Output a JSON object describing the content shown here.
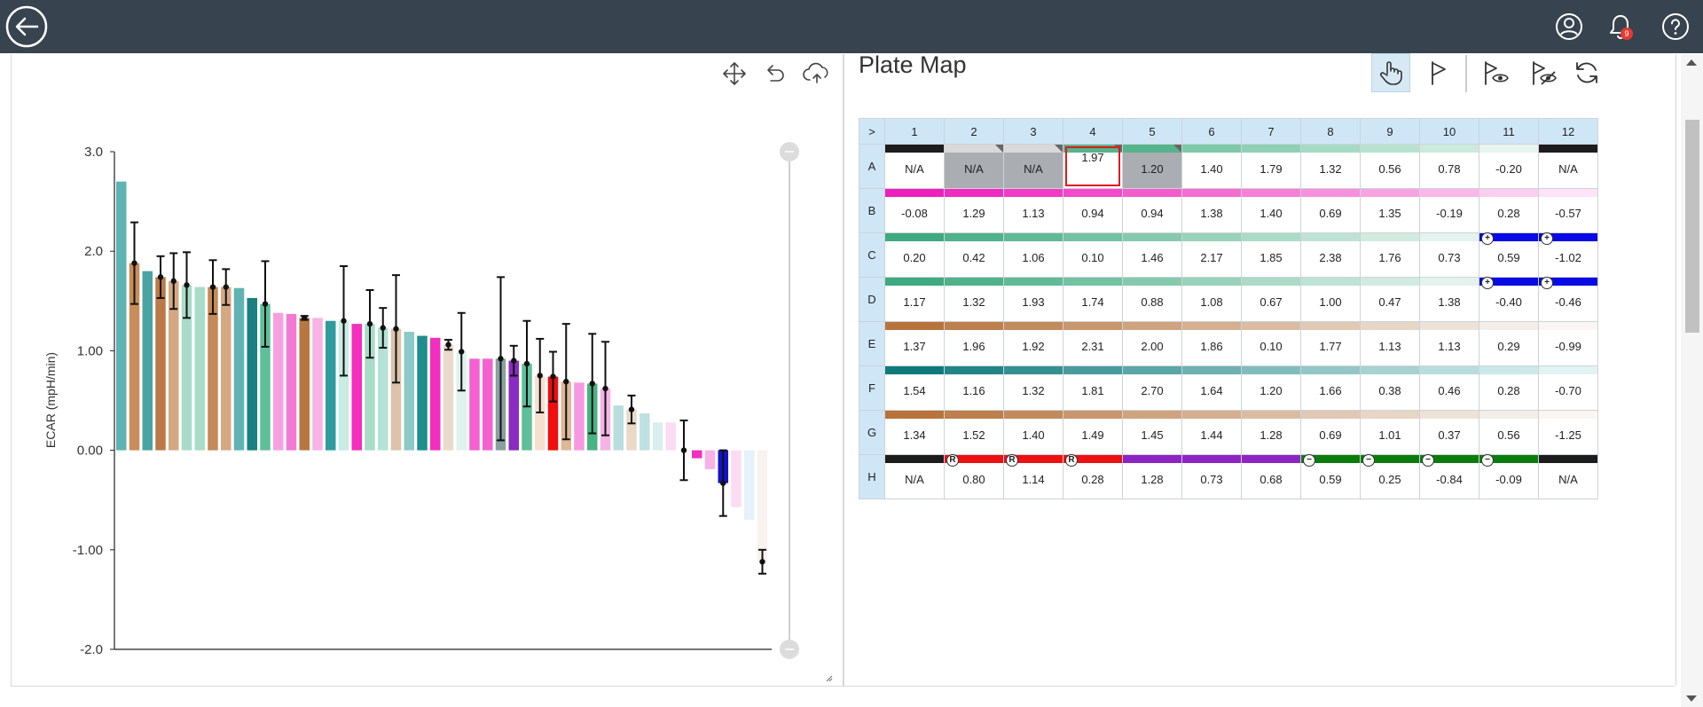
{
  "header": {
    "back_icon": "back-arrow-icon",
    "account_icon": "account-icon",
    "notifications_icon": "bell-icon",
    "notification_count": "9",
    "help_icon": "help-icon"
  },
  "chart_toolbar": [
    "move-icon",
    "undo-icon",
    "cloud-upload-icon"
  ],
  "chart_data": {
    "type": "bar",
    "ylabel": "ECAR (mpH/min)",
    "ylim": [
      -2.0,
      3.0
    ],
    "yticks": [
      "3.0",
      "2.0",
      "1.00",
      "0.00",
      "-1.00",
      "-2.0"
    ],
    "ytick_values": [
      3,
      2,
      1,
      0,
      -1,
      -2
    ],
    "bars": [
      {
        "v": 2.7,
        "c": "#5fb3b3"
      },
      {
        "v": 1.88,
        "c": "#c98d5a",
        "e": 0.41
      },
      {
        "v": 1.8,
        "c": "#4ca3a3"
      },
      {
        "v": 1.74,
        "c": "#bb7a45",
        "e": 0.21
      },
      {
        "v": 1.7,
        "c": "#d5a883",
        "e": 0.28
      },
      {
        "v": 1.66,
        "c": "#a8dcc8",
        "e": 0.33
      },
      {
        "v": 1.64,
        "c": "#a8dcc8"
      },
      {
        "v": 1.64,
        "c": "#c58a57",
        "e": 0.27
      },
      {
        "v": 1.64,
        "c": "#d5a883",
        "e": 0.18
      },
      {
        "v": 1.63,
        "c": "#5fb3b3"
      },
      {
        "v": 1.53,
        "c": "#1a8080"
      },
      {
        "v": 1.47,
        "c": "#5ec09b",
        "e": 0.43
      },
      {
        "v": 1.38,
        "c": "#f7a0e0"
      },
      {
        "v": 1.37,
        "c": "#f27ad4"
      },
      {
        "v": 1.33,
        "c": "#b87740",
        "e": 0.02
      },
      {
        "v": 1.33,
        "c": "#f7b3e6"
      },
      {
        "v": 1.3,
        "c": "#2f9b9b"
      },
      {
        "v": 1.3,
        "c": "#c9ece3",
        "e": 0.55
      },
      {
        "v": 1.27,
        "c": "#f22fbe"
      },
      {
        "v": 1.27,
        "c": "#a8dcc8",
        "e": 0.34
      },
      {
        "v": 1.23,
        "c": "#b4e2d6",
        "e": 0.2
      },
      {
        "v": 1.22,
        "c": "#dcc3aa",
        "e": 0.54
      },
      {
        "v": 1.19,
        "c": "#8cc9c9"
      },
      {
        "v": 1.15,
        "c": "#1f8d8d"
      },
      {
        "v": 1.13,
        "c": "#f22fbe"
      },
      {
        "v": 1.06,
        "c": "#eadac9",
        "e": 0.05
      },
      {
        "v": 0.99,
        "c": "#dff2ed",
        "e": 0.39
      },
      {
        "v": 0.92,
        "c": "#f561d0"
      },
      {
        "v": 0.92,
        "c": "#f561d0"
      },
      {
        "v": 0.92,
        "c": "#8aa0a0",
        "e": 0.82
      },
      {
        "v": 0.9,
        "c": "#8a2bc2",
        "e": 0.15
      },
      {
        "v": 0.87,
        "c": "#5ec09b",
        "e": 0.43
      },
      {
        "v": 0.75,
        "c": "#f7dfd0",
        "e": 0.37
      },
      {
        "v": 0.74,
        "c": "#f00d0d",
        "e": 0.25
      },
      {
        "v": 0.69,
        "c": "#dfb797",
        "e": 0.58
      },
      {
        "v": 0.68,
        "c": "#f799e2"
      },
      {
        "v": 0.67,
        "c": "#48b382",
        "e": 0.5
      },
      {
        "v": 0.62,
        "c": "#f7b3e6",
        "e": 0.47
      },
      {
        "v": 0.45,
        "c": "#b9dede"
      },
      {
        "v": 0.41,
        "c": "#ead9c7",
        "e": 0.14
      },
      {
        "v": 0.37,
        "c": "#bfe0e0"
      },
      {
        "v": 0.28,
        "c": "#d9eeee"
      },
      {
        "v": 0.28,
        "c": "#fcdbf4"
      },
      {
        "v": 0.0,
        "c": "#f7f7f7",
        "e": 0.3
      },
      {
        "v": -0.08,
        "c": "#f22fbe"
      },
      {
        "v": -0.19,
        "c": "#f7b3e6"
      },
      {
        "v": -0.33,
        "c": "#1414c8",
        "e": 0.33
      },
      {
        "v": -0.57,
        "c": "#fcdcf3"
      },
      {
        "v": -0.7,
        "c": "#e6f1fa"
      },
      {
        "v": -1.12,
        "c": "#f9f2ee",
        "e": 0.12
      }
    ]
  },
  "plate": {
    "title": "Plate Map",
    "toolbar": [
      "pointer-hand-icon",
      "flag-icon",
      "show-flagged-icon",
      "hide-flagged-icon",
      "refresh-icon"
    ],
    "corner": ">",
    "columns": [
      "1",
      "2",
      "3",
      "4",
      "5",
      "6",
      "7",
      "8",
      "9",
      "10",
      "11",
      "12"
    ],
    "rows": [
      {
        "label": "A",
        "cells": [
          {
            "v": "N/A",
            "s": "#1c1c1c"
          },
          {
            "v": "N/A",
            "s": "#d9d9d9",
            "grey": true,
            "notch": true
          },
          {
            "v": "N/A",
            "s": "#d9d9d9",
            "grey": true,
            "notch": true
          },
          {
            "v": "1.97",
            "s": "#56b48d",
            "sel": true,
            "notch": true
          },
          {
            "v": "1.20",
            "s": "#56b48d",
            "grey": true,
            "notch": true
          },
          {
            "v": "1.40",
            "s": "#7ccaa9"
          },
          {
            "v": "1.79",
            "s": "#8ed1b6"
          },
          {
            "v": "1.32",
            "s": "#a5dbc4"
          },
          {
            "v": "0.56",
            "s": "#b8e2d0"
          },
          {
            "v": "0.78",
            "s": "#cdeadf"
          },
          {
            "v": "-0.20",
            "s": "#e7f4ef"
          },
          {
            "v": "N/A",
            "s": "#1c1c1c"
          }
        ]
      },
      {
        "label": "B",
        "cells": [
          {
            "v": "-0.08",
            "s": "#ee20bd"
          },
          {
            "v": "1.29",
            "s": "#f02cc0"
          },
          {
            "v": "1.13",
            "s": "#f23bc4"
          },
          {
            "v": "0.94",
            "s": "#f34ac9"
          },
          {
            "v": "0.94",
            "s": "#f45bcd"
          },
          {
            "v": "1.38",
            "s": "#f56cd2"
          },
          {
            "v": "1.40",
            "s": "#f67fd8"
          },
          {
            "v": "0.69",
            "s": "#f791dd"
          },
          {
            "v": "1.35",
            "s": "#f8a4e3"
          },
          {
            "v": "-0.19",
            "s": "#f9b8e9"
          },
          {
            "v": "0.28",
            "s": "#fbcdef"
          },
          {
            "v": "-0.57",
            "s": "#fde3f6"
          }
        ]
      },
      {
        "label": "C",
        "cells": [
          {
            "v": "0.20",
            "s": "#3eaa80"
          },
          {
            "v": "0.42",
            "s": "#4fb28b"
          },
          {
            "v": "1.06",
            "s": "#61ba96"
          },
          {
            "v": "0.10",
            "s": "#73c2a2"
          },
          {
            "v": "1.46",
            "s": "#85caae"
          },
          {
            "v": "2.17",
            "s": "#98d2ba"
          },
          {
            "v": "1.85",
            "s": "#abdbc7"
          },
          {
            "v": "2.38",
            "s": "#bee3d4"
          },
          {
            "v": "1.76",
            "s": "#d1ebe1"
          },
          {
            "v": "0.73",
            "s": "#e4f3ed"
          },
          {
            "v": "0.59",
            "s": "#0a0ae6",
            "mk": "+"
          },
          {
            "v": "-1.02",
            "s": "#0a0ae6",
            "mk": "+"
          }
        ]
      },
      {
        "label": "D",
        "cells": [
          {
            "v": "1.17",
            "s": "#3eaa80"
          },
          {
            "v": "1.32",
            "s": "#4fb28b"
          },
          {
            "v": "1.93",
            "s": "#61ba96"
          },
          {
            "v": "1.74",
            "s": "#73c2a2"
          },
          {
            "v": "0.88",
            "s": "#85caae"
          },
          {
            "v": "1.08",
            "s": "#98d2ba"
          },
          {
            "v": "0.67",
            "s": "#abdbc7"
          },
          {
            "v": "1.00",
            "s": "#bee3d4"
          },
          {
            "v": "0.47",
            "s": "#d1ebe1"
          },
          {
            "v": "1.38",
            "s": "#e4f3ed"
          },
          {
            "v": "-0.40",
            "s": "#0a0ae6",
            "mk": "+"
          },
          {
            "v": "-0.46",
            "s": "#0a0ae6",
            "mk": "+"
          }
        ]
      },
      {
        "label": "E",
        "cells": [
          {
            "v": "1.37",
            "s": "#b8733b"
          },
          {
            "v": "1.96",
            "s": "#bd7f4b"
          },
          {
            "v": "1.92",
            "s": "#c38b5c"
          },
          {
            "v": "2.31",
            "s": "#c9976d"
          },
          {
            "v": "2.00",
            "s": "#cfa37e"
          },
          {
            "v": "1.86",
            "s": "#d5af90"
          },
          {
            "v": "0.10",
            "s": "#dbbca2"
          },
          {
            "v": "1.77",
            "s": "#e1c8b4"
          },
          {
            "v": "1.13",
            "s": "#e7d5c6"
          },
          {
            "v": "1.13",
            "s": "#ede2d8"
          },
          {
            "v": "0.29",
            "s": "#f3eee8"
          },
          {
            "v": "-0.99",
            "s": "#f9f6f3"
          }
        ]
      },
      {
        "label": "F",
        "cells": [
          {
            "v": "1.54",
            "s": "#0f7a7a"
          },
          {
            "v": "1.16",
            "s": "#218585"
          },
          {
            "v": "1.32",
            "s": "#349090"
          },
          {
            "v": "1.81",
            "s": "#479b9b"
          },
          {
            "v": "2.70",
            "s": "#5aa6a6"
          },
          {
            "v": "1.64",
            "s": "#6db1b1"
          },
          {
            "v": "1.20",
            "s": "#80bcbc"
          },
          {
            "v": "1.66",
            "s": "#93c7c7"
          },
          {
            "v": "0.38",
            "s": "#a6d2d2"
          },
          {
            "v": "0.46",
            "s": "#b9dddd"
          },
          {
            "v": "0.28",
            "s": "#cce8e8"
          },
          {
            "v": "-0.70",
            "s": "#e2f3f3"
          }
        ]
      },
      {
        "label": "G",
        "cells": [
          {
            "v": "1.34",
            "s": "#b8733b"
          },
          {
            "v": "1.52",
            "s": "#bd7f4b"
          },
          {
            "v": "1.40",
            "s": "#c38b5c"
          },
          {
            "v": "1.49",
            "s": "#c9976d"
          },
          {
            "v": "1.45",
            "s": "#cfa37e"
          },
          {
            "v": "1.44",
            "s": "#d5af90"
          },
          {
            "v": "1.28",
            "s": "#dbbca2"
          },
          {
            "v": "0.69",
            "s": "#e1c8b4"
          },
          {
            "v": "1.01",
            "s": "#e7d5c6"
          },
          {
            "v": "0.37",
            "s": "#ede2d8"
          },
          {
            "v": "0.56",
            "s": "#f3eee8"
          },
          {
            "v": "-1.25",
            "s": "#f9f6f3"
          }
        ]
      },
      {
        "label": "H",
        "cells": [
          {
            "v": "N/A",
            "s": "#1c1c1c"
          },
          {
            "v": "0.80",
            "s": "#ee1111",
            "mk": "R"
          },
          {
            "v": "1.14",
            "s": "#ee1111",
            "mk": "R"
          },
          {
            "v": "0.28",
            "s": "#ee1111",
            "mk": "R"
          },
          {
            "v": "1.28",
            "s": "#8e24c2"
          },
          {
            "v": "0.73",
            "s": "#8e24c2"
          },
          {
            "v": "0.68",
            "s": "#8e24c2"
          },
          {
            "v": "0.59",
            "s": "#0c7d0c",
            "mk": "−"
          },
          {
            "v": "0.25",
            "s": "#0c7d0c",
            "mk": "−"
          },
          {
            "v": "-0.84",
            "s": "#0c7d0c",
            "mk": "−"
          },
          {
            "v": "-0.09",
            "s": "#0c7d0c",
            "mk": "−"
          },
          {
            "v": "N/A",
            "s": "#1c1c1c"
          }
        ]
      }
    ]
  }
}
